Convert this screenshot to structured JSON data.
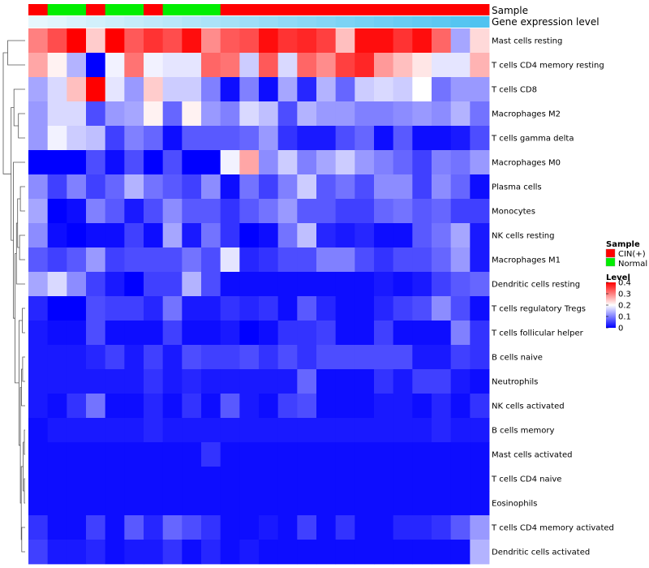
{
  "chart_data": {
    "type": "heatmap",
    "title": "",
    "rows": [
      "Mast cells resting",
      "T cells CD4 memory resting",
      "T cells CD8",
      "Macrophages M2",
      "T cells gamma delta",
      "Macrophages M0",
      "Plasma cells",
      "Monocytes",
      "NK cells resting",
      "Macrophages M1",
      "Dendritic cells resting",
      "T cells regulatory  Tregs",
      "T cells follicular helper",
      "B cells naive",
      "Neutrophils",
      "NK cells activated",
      "B cells memory",
      "Mast cells activated",
      "T cells CD4 naive",
      "Eosinophils",
      "T cells CD4 memory activated",
      "Dendritic cells activated"
    ],
    "n_columns": 24,
    "values": [
      [
        0.3,
        0.34,
        0.4,
        0.24,
        0.4,
        0.33,
        0.36,
        0.34,
        0.39,
        0.29,
        0.33,
        0.34,
        0.39,
        0.36,
        0.37,
        0.35,
        0.25,
        0.39,
        0.39,
        0.36,
        0.39,
        0.32,
        0.13,
        0.23
      ],
      [
        0.27,
        0.21,
        0.14,
        0.0,
        0.19,
        0.31,
        0.19,
        0.18,
        0.18,
        0.32,
        0.31,
        0.16,
        0.33,
        0.17,
        0.32,
        0.29,
        0.35,
        0.37,
        0.28,
        0.25,
        0.22,
        0.18,
        0.18,
        0.26
      ],
      [
        0.13,
        0.17,
        0.25,
        0.4,
        0.18,
        0.12,
        0.24,
        0.16,
        0.16,
        0.1,
        0.01,
        0.1,
        0.01,
        0.13,
        0.03,
        0.14,
        0.08,
        0.16,
        0.17,
        0.16,
        0.2,
        0.09,
        0.12,
        0.12
      ],
      [
        0.12,
        0.17,
        0.17,
        0.06,
        0.12,
        0.13,
        0.21,
        0.08,
        0.21,
        0.12,
        0.1,
        0.17,
        0.15,
        0.06,
        0.14,
        0.12,
        0.12,
        0.1,
        0.1,
        0.11,
        0.12,
        0.11,
        0.14,
        0.09
      ],
      [
        0.12,
        0.19,
        0.16,
        0.15,
        0.05,
        0.1,
        0.08,
        0.01,
        0.07,
        0.07,
        0.07,
        0.08,
        0.12,
        0.04,
        0.02,
        0.02,
        0.06,
        0.08,
        0.01,
        0.07,
        0.01,
        0.01,
        0.02,
        0.06
      ],
      [
        0.0,
        0.0,
        0.0,
        0.06,
        0.01,
        0.06,
        0.0,
        0.06,
        0.0,
        0.0,
        0.19,
        0.27,
        0.11,
        0.16,
        0.1,
        0.13,
        0.16,
        0.12,
        0.1,
        0.08,
        0.05,
        0.1,
        0.09,
        0.12
      ],
      [
        0.11,
        0.05,
        0.1,
        0.05,
        0.08,
        0.14,
        0.09,
        0.07,
        0.05,
        0.11,
        0.01,
        0.09,
        0.05,
        0.1,
        0.16,
        0.07,
        0.09,
        0.06,
        0.11,
        0.11,
        0.05,
        0.11,
        0.08,
        0.01
      ],
      [
        0.13,
        0.0,
        0.01,
        0.1,
        0.07,
        0.02,
        0.06,
        0.11,
        0.07,
        0.07,
        0.04,
        0.07,
        0.09,
        0.12,
        0.07,
        0.07,
        0.05,
        0.05,
        0.08,
        0.09,
        0.07,
        0.08,
        0.05,
        0.05
      ],
      [
        0.11,
        0.01,
        0.0,
        0.01,
        0.01,
        0.05,
        0.01,
        0.13,
        0.02,
        0.09,
        0.04,
        0.0,
        0.01,
        0.09,
        0.15,
        0.03,
        0.02,
        0.03,
        0.01,
        0.01,
        0.07,
        0.09,
        0.13,
        0.02
      ],
      [
        0.07,
        0.05,
        0.07,
        0.12,
        0.05,
        0.06,
        0.06,
        0.06,
        0.09,
        0.06,
        0.18,
        0.03,
        0.04,
        0.06,
        0.06,
        0.1,
        0.1,
        0.06,
        0.04,
        0.06,
        0.06,
        0.08,
        0.12,
        0.02
      ],
      [
        0.13,
        0.17,
        0.11,
        0.05,
        0.02,
        0.0,
        0.05,
        0.05,
        0.14,
        0.06,
        0.01,
        0.01,
        0.01,
        0.01,
        0.01,
        0.01,
        0.01,
        0.01,
        0.02,
        0.01,
        0.02,
        0.05,
        0.07,
        0.08
      ],
      [
        0.03,
        0.0,
        0.0,
        0.06,
        0.05,
        0.05,
        0.03,
        0.09,
        0.02,
        0.02,
        0.04,
        0.03,
        0.04,
        0.01,
        0.07,
        0.03,
        0.01,
        0.01,
        0.03,
        0.05,
        0.06,
        0.11,
        0.06,
        0.01
      ],
      [
        0.02,
        0.01,
        0.01,
        0.06,
        0.01,
        0.01,
        0.01,
        0.05,
        0.01,
        0.01,
        0.02,
        0.0,
        0.01,
        0.04,
        0.04,
        0.05,
        0.01,
        0.01,
        0.05,
        0.01,
        0.01,
        0.01,
        0.1,
        0.04
      ],
      [
        0.02,
        0.02,
        0.02,
        0.03,
        0.05,
        0.02,
        0.05,
        0.02,
        0.06,
        0.05,
        0.05,
        0.06,
        0.04,
        0.06,
        0.04,
        0.06,
        0.06,
        0.06,
        0.06,
        0.06,
        0.02,
        0.02,
        0.05,
        0.04
      ],
      [
        0.02,
        0.02,
        0.02,
        0.02,
        0.02,
        0.02,
        0.04,
        0.02,
        0.03,
        0.02,
        0.02,
        0.02,
        0.02,
        0.02,
        0.08,
        0.01,
        0.01,
        0.01,
        0.04,
        0.02,
        0.05,
        0.05,
        0.02,
        0.01
      ],
      [
        0.02,
        0.01,
        0.04,
        0.09,
        0.01,
        0.01,
        0.03,
        0.01,
        0.04,
        0.01,
        0.07,
        0.02,
        0.01,
        0.05,
        0.06,
        0.01,
        0.01,
        0.01,
        0.02,
        0.02,
        0.01,
        0.03,
        0.01,
        0.04
      ],
      [
        0.01,
        0.02,
        0.02,
        0.02,
        0.02,
        0.02,
        0.03,
        0.02,
        0.02,
        0.02,
        0.02,
        0.02,
        0.02,
        0.02,
        0.02,
        0.02,
        0.02,
        0.02,
        0.02,
        0.02,
        0.02,
        0.03,
        0.02,
        0.02
      ],
      [
        0.01,
        0.01,
        0.01,
        0.01,
        0.01,
        0.01,
        0.01,
        0.01,
        0.01,
        0.04,
        0.01,
        0.01,
        0.01,
        0.01,
        0.01,
        0.01,
        0.01,
        0.01,
        0.01,
        0.01,
        0.01,
        0.01,
        0.01,
        0.01
      ],
      [
        0.01,
        0.01,
        0.01,
        0.01,
        0.01,
        0.01,
        0.01,
        0.01,
        0.01,
        0.01,
        0.01,
        0.01,
        0.01,
        0.01,
        0.01,
        0.01,
        0.01,
        0.01,
        0.01,
        0.01,
        0.01,
        0.01,
        0.01,
        0.01
      ],
      [
        0.01,
        0.01,
        0.01,
        0.01,
        0.01,
        0.01,
        0.01,
        0.01,
        0.01,
        0.01,
        0.01,
        0.01,
        0.01,
        0.01,
        0.01,
        0.01,
        0.01,
        0.01,
        0.01,
        0.01,
        0.01,
        0.01,
        0.01,
        0.01
      ],
      [
        0.04,
        0.01,
        0.01,
        0.05,
        0.01,
        0.07,
        0.03,
        0.08,
        0.06,
        0.04,
        0.01,
        0.01,
        0.02,
        0.01,
        0.05,
        0.01,
        0.04,
        0.01,
        0.01,
        0.03,
        0.03,
        0.04,
        0.07,
        0.12
      ],
      [
        0.05,
        0.02,
        0.02,
        0.03,
        0.01,
        0.02,
        0.02,
        0.04,
        0.01,
        0.03,
        0.01,
        0.02,
        0.01,
        0.01,
        0.01,
        0.01,
        0.01,
        0.01,
        0.01,
        0.01,
        0.01,
        0.01,
        0.01,
        0.14
      ]
    ],
    "color_scale": {
      "title": "Level",
      "min": 0,
      "max": 0.4,
      "ticks": [
        "0.4",
        "0.3",
        "0.2",
        "0.1",
        "0"
      ],
      "tick_values": [
        0.4,
        0.3,
        0.2,
        0.1,
        0.0
      ],
      "low_color": "#0000ff",
      "mid_color": "#ffffff",
      "high_color": "#ff0000",
      "mid_value": 0.2
    },
    "annotations": [
      {
        "name": "Sample",
        "type": "categorical",
        "values": [
          "CIN(+)",
          "Normal",
          "Normal",
          "CIN(+)",
          "Normal",
          "Normal",
          "CIN(+)",
          "Normal",
          "Normal",
          "Normal",
          "CIN(+)",
          "CIN(+)",
          "CIN(+)",
          "CIN(+)",
          "CIN(+)",
          "CIN(+)",
          "CIN(+)",
          "CIN(+)",
          "CIN(+)",
          "CIN(+)",
          "CIN(+)",
          "CIN(+)",
          "CIN(+)",
          "CIN(+)"
        ],
        "legend_title": "Sample",
        "levels": [
          {
            "label": "CIN(+)",
            "color": "#ff0000"
          },
          {
            "label": "Normal",
            "color": "#00ee00"
          }
        ]
      },
      {
        "name": "Gene expression level",
        "type": "continuous",
        "values": [
          0.0,
          0.04,
          0.09,
          0.13,
          0.17,
          0.22,
          0.26,
          0.3,
          0.35,
          0.39,
          0.43,
          0.48,
          0.52,
          0.57,
          0.61,
          0.65,
          0.7,
          0.74,
          0.78,
          0.83,
          0.87,
          0.91,
          0.96,
          1.0
        ],
        "low_color": "#e6f7fd",
        "high_color": "#4fc3f0"
      }
    ],
    "dendrogram": {
      "side": "left",
      "nodes": [
        {
          "id": "n1",
          "left": 16,
          "right": 17,
          "height": 0.03
        },
        {
          "id": "n2",
          "left": 18,
          "right": 19,
          "height": 0.03
        },
        {
          "id": "n3",
          "left": "n1",
          "right": "n2",
          "height": 0.07
        },
        {
          "id": "n4",
          "left": 20,
          "right": 21,
          "height": 0.12
        },
        {
          "id": "n5",
          "left": "n3",
          "right": "n4",
          "height": 0.14
        },
        {
          "id": "n6",
          "left": 13,
          "right": 14,
          "height": 0.09
        },
        {
          "id": "n7",
          "left": "n6",
          "right": 15,
          "height": 0.13
        },
        {
          "id": "n8",
          "left": "n7",
          "right": "n5",
          "height": 0.17
        },
        {
          "id": "n9",
          "left": 11,
          "right": 12,
          "height": 0.1
        },
        {
          "id": "n10",
          "left": "n9",
          "right": "n8",
          "height": 0.22
        },
        {
          "id": "n11",
          "left": 8,
          "right": 9,
          "height": 0.2
        },
        {
          "id": "n12",
          "left": 6,
          "right": 7,
          "height": 0.17
        },
        {
          "id": "n13",
          "left": "n12",
          "right": "n11",
          "height": 0.27
        },
        {
          "id": "n14",
          "left": "n13",
          "right": 10,
          "height": 0.31
        },
        {
          "id": "n15",
          "left": "n14",
          "right": "n10",
          "height": 0.36
        },
        {
          "id": "n16",
          "left": 5,
          "right": "n15",
          "height": 0.42
        },
        {
          "id": "n17",
          "left": 3,
          "right": 4,
          "height": 0.24
        },
        {
          "id": "n18",
          "left": 2,
          "right": "n17",
          "height": 0.4
        },
        {
          "id": "n19",
          "left": "n18",
          "right": "n16",
          "height": 0.5
        },
        {
          "id": "n20",
          "left": 0,
          "right": 1,
          "height": 0.62
        },
        {
          "id": "n21",
          "left": "n20",
          "right": "n19",
          "height": 0.78
        }
      ]
    }
  }
}
